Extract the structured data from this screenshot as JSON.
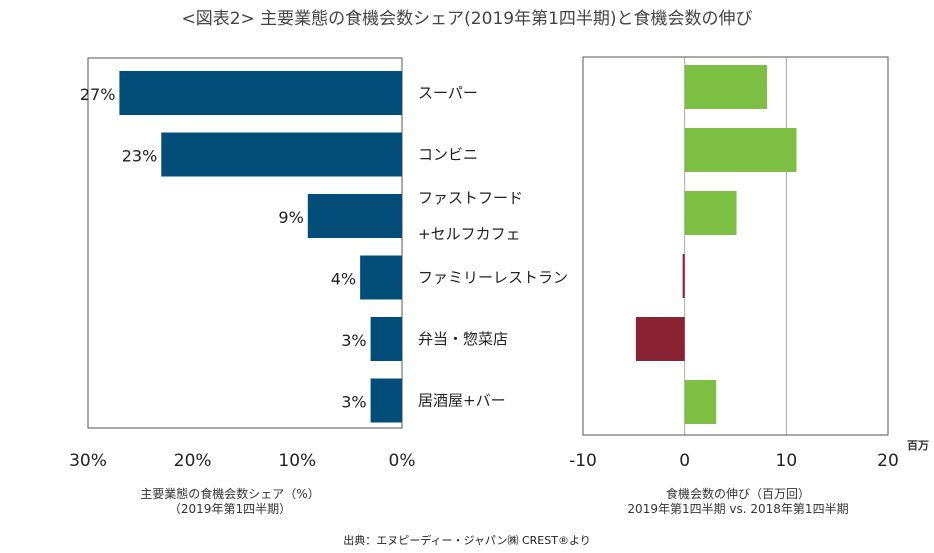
{
  "title": "<図表2> 主要業態の食機会数シェア(2019年第1四半期)と食機会数の伸び",
  "source": "出典：エヌピーディー・ジャパン㈱ CREST®より",
  "colors": {
    "share_bar": "#034d79",
    "growth_positive": "#7cbf43",
    "growth_negative": "#892232",
    "frame": "#555555",
    "gridline": "#aaaaaa"
  },
  "categories": [
    [
      "スーパー"
    ],
    [
      "コンビニ"
    ],
    [
      "ファストフード",
      "+セルフカフェ"
    ],
    [
      "ファミリーレストラン"
    ],
    [
      "弁当・惣菜店"
    ],
    [
      "居酒屋+バー"
    ]
  ],
  "chart_data": [
    {
      "type": "bar",
      "orientation": "horizontal-reversed",
      "categories": [
        "スーパー",
        "コンビニ",
        "ファストフード+セルフカフェ",
        "ファミリーレストラン",
        "弁当・惣菜店",
        "居酒屋+バー"
      ],
      "values": [
        27,
        23,
        9,
        4,
        3,
        3
      ],
      "value_labels": [
        "27%",
        "23%",
        "9%",
        "4%",
        "3%",
        "3%"
      ],
      "xlabel": [
        "主要業態の食機会数シェア（%）",
        "（2019年第1四半期）"
      ],
      "xlim": [
        30,
        0
      ],
      "ticks": [
        30,
        20,
        10,
        0
      ],
      "tick_labels": [
        "30%",
        "20%",
        "10%",
        "0%"
      ],
      "grid": false
    },
    {
      "type": "bar",
      "orientation": "horizontal",
      "categories": [
        "スーパー",
        "コンビニ",
        "ファストフード+セルフカフェ",
        "ファミリーレストラン",
        "弁当・惣菜店",
        "居酒屋+バー"
      ],
      "values": [
        8.1,
        11,
        5.1,
        -0.2,
        -4.8,
        3.1
      ],
      "xlabel": [
        "食機会数の伸び（百万回）",
        "2019年第1四半期 vs. 2018年第1四半期"
      ],
      "unit": "百万",
      "xlim": [
        -10,
        20
      ],
      "ticks": [
        -10,
        0,
        10,
        20
      ],
      "tick_labels": [
        "-10",
        "0",
        "10",
        "20"
      ],
      "grid": "vertical at 0 and 10"
    }
  ]
}
